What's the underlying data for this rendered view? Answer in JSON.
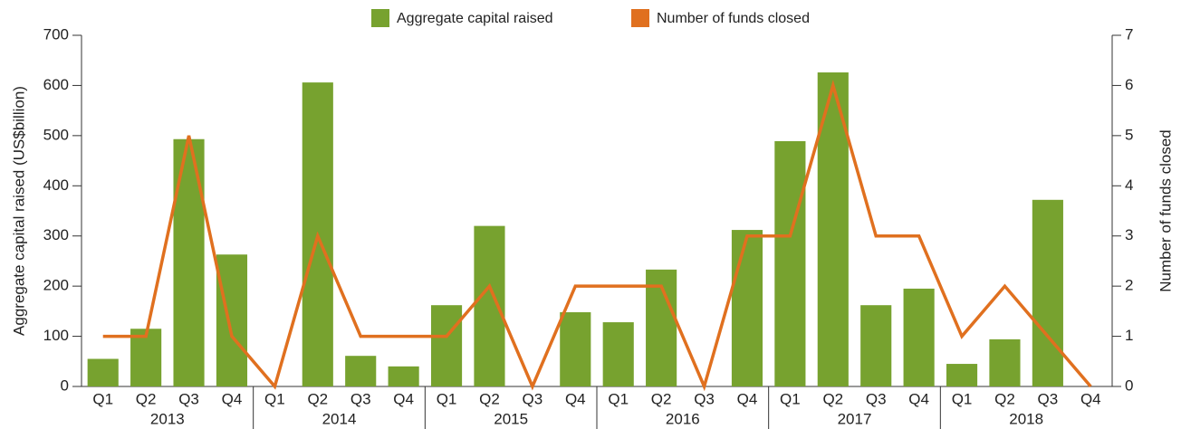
{
  "chart_data": {
    "type": "bar-line",
    "categories": [
      "Q1",
      "Q2",
      "Q3",
      "Q4",
      "Q1",
      "Q2",
      "Q3",
      "Q4",
      "Q1",
      "Q2",
      "Q3",
      "Q4",
      "Q1",
      "Q2",
      "Q3",
      "Q4",
      "Q1",
      "Q2",
      "Q3",
      "Q4",
      "Q1",
      "Q2",
      "Q3",
      "Q4"
    ],
    "groups": [
      "2013",
      "2014",
      "2015",
      "2016",
      "2017",
      "2018"
    ],
    "series": [
      {
        "name": "Aggregate capital raised",
        "type": "bar",
        "color": "#77a22f",
        "values": [
          55,
          115,
          493,
          263,
          0,
          606,
          61,
          40,
          162,
          320,
          0,
          148,
          128,
          233,
          0,
          312,
          489,
          626,
          162,
          195,
          45,
          94,
          372,
          0
        ]
      },
      {
        "name": "Number of funds closed",
        "type": "line",
        "color": "#e0701f",
        "axis": "y2",
        "values": [
          1,
          1,
          5,
          1,
          0,
          3,
          1,
          1,
          1,
          2,
          0,
          2,
          2,
          2,
          0,
          3,
          3,
          6,
          3,
          3,
          1,
          2,
          1,
          0
        ]
      }
    ],
    "y_label": "Aggregate capital raised (US$billion)",
    "y2_label": "Number of funds closed",
    "ylim": [
      0,
      700
    ],
    "yticks": [
      0,
      100,
      200,
      300,
      400,
      500,
      600,
      700
    ],
    "y2lim": [
      0,
      7
    ],
    "y2ticks": [
      0,
      1,
      2,
      3,
      4,
      5,
      6,
      7
    ],
    "legend": "top"
  }
}
